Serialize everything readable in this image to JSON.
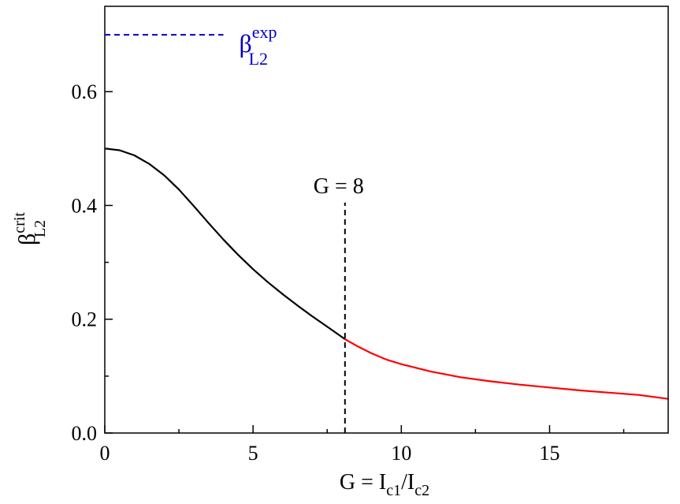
{
  "chart_data": {
    "type": "line",
    "xlim": [
      0,
      19
    ],
    "ylim": [
      0,
      0.75
    ],
    "x_ticks": [
      0,
      5,
      10,
      15
    ],
    "x_tick_labels": [
      "0",
      "5",
      "10",
      "15"
    ],
    "x_minor_ticks": [
      2.5,
      7.5,
      12.5,
      17.5
    ],
    "y_ticks": [
      0,
      0.2,
      0.4,
      0.6
    ],
    "y_tick_labels": [
      "0.0",
      "0.2",
      "0.4",
      "0.6"
    ],
    "y_minor_ticks": [
      0.1,
      0.3,
      0.5,
      0.7
    ],
    "grid": false,
    "xlabel": {
      "main": "G = I",
      "sub1": "c1",
      "mid": "/I",
      "sub2": "c2"
    },
    "ylabel": {
      "main": "β",
      "sup": "crit",
      "sub": "L2"
    },
    "series": [
      {
        "color": "#000000",
        "x": [
          0,
          0.5,
          1,
          1.5,
          2,
          2.5,
          3,
          3.5,
          4,
          4.5,
          5,
          5.5,
          6,
          6.5,
          7,
          7.5,
          8.1
        ],
        "y": [
          0.5,
          0.497,
          0.488,
          0.473,
          0.453,
          0.428,
          0.399,
          0.369,
          0.34,
          0.313,
          0.288,
          0.265,
          0.244,
          0.224,
          0.205,
          0.187,
          0.165
        ]
      },
      {
        "color": "#ff0000",
        "x": [
          8.1,
          8.5,
          9,
          9.5,
          10,
          11,
          12,
          13,
          14,
          15,
          16,
          17,
          18,
          19
        ],
        "y": [
          0.165,
          0.153,
          0.14,
          0.129,
          0.121,
          0.108,
          0.098,
          0.091,
          0.085,
          0.08,
          0.075,
          0.071,
          0.067,
          0.06
        ]
      }
    ],
    "vline": {
      "x": 8.1,
      "y_range": [
        0,
        0.405
      ],
      "color": "#000000",
      "label": "G = 8"
    },
    "legend": {
      "color": "#0000cc",
      "line_x": [
        0,
        4
      ],
      "y": 0.7,
      "main": "β",
      "sup": "exp",
      "sub": "L2"
    }
  }
}
